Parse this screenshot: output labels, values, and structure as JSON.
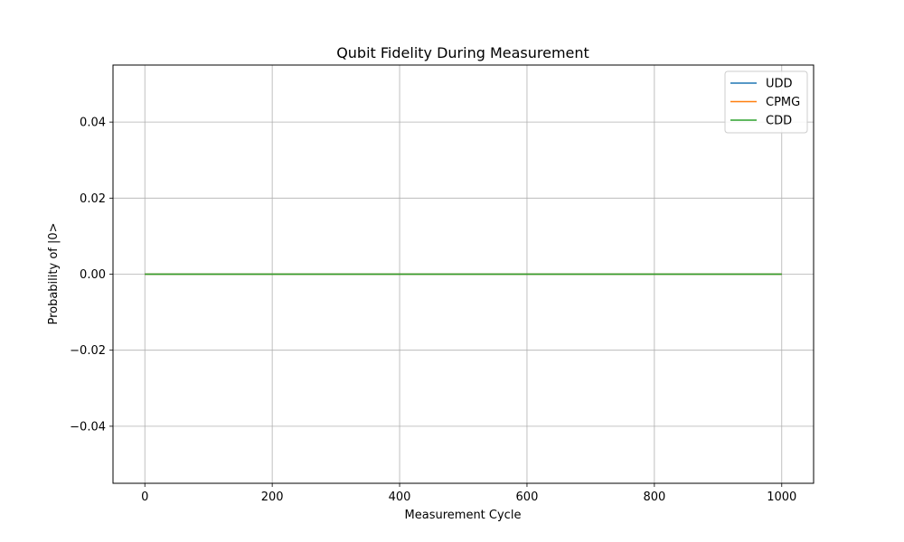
{
  "chart_data": {
    "type": "line",
    "title": "Qubit Fidelity During Measurement",
    "xlabel": "Measurement Cycle",
    "ylabel": "Probability of |0>",
    "xlim": [
      -50,
      1050
    ],
    "ylim": [
      -0.055,
      0.055
    ],
    "xticks": [
      0,
      200,
      400,
      600,
      800,
      1000
    ],
    "yticks": [
      -0.04,
      -0.02,
      0.0,
      0.02,
      0.04
    ],
    "ytick_labels": [
      "−0.04",
      "−0.02",
      "0.00",
      "0.02",
      "0.04"
    ],
    "grid": true,
    "legend_position": "top-right",
    "series": [
      {
        "name": "UDD",
        "color": "#1f77b4",
        "x": [
          0,
          1000
        ],
        "y": [
          0,
          0
        ]
      },
      {
        "name": "CPMG",
        "color": "#ff7f0e",
        "x": [
          0,
          1000
        ],
        "y": [
          0,
          0
        ]
      },
      {
        "name": "CDD",
        "color": "#2ca02c",
        "x": [
          0,
          1000
        ],
        "y": [
          0,
          0
        ]
      }
    ]
  }
}
